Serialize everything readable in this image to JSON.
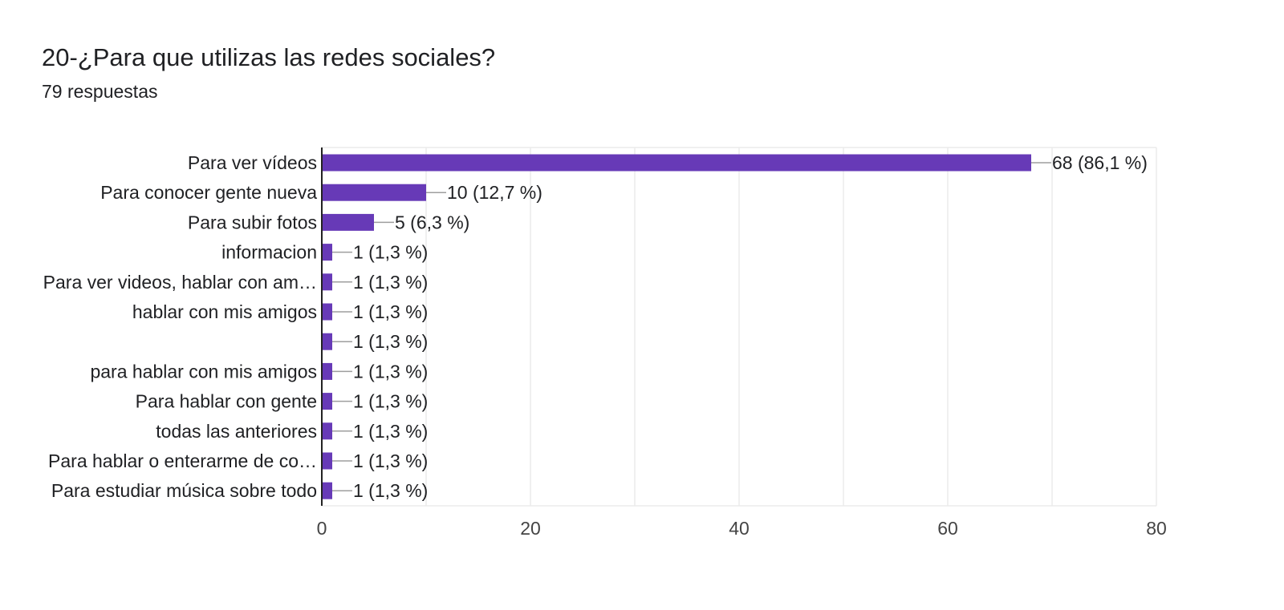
{
  "header": {
    "title": "20-¿Para que utilizas las redes sociales?",
    "subtitle": "79 respuestas"
  },
  "colors": {
    "bar": "#673ab7",
    "grid": "#ebebeb",
    "leader": "#9e9e9e",
    "axis": "#222222"
  },
  "chart_data": {
    "type": "bar",
    "orientation": "horizontal",
    "title": "20-¿Para que utilizas las redes sociales?",
    "subtitle": "79 respuestas",
    "categories": [
      "Para ver vídeos",
      "Para conocer gente nueva",
      "Para subir fotos",
      "informacion",
      "Para ver videos, hablar con am…",
      "hablar con mis amigos",
      "",
      "para hablar con mis amigos",
      "Para hablar con gente",
      "todas las anteriores",
      "Para hablar o enterarme de co…",
      "Para estudiar música sobre todo"
    ],
    "values": [
      68,
      10,
      5,
      1,
      1,
      1,
      1,
      1,
      1,
      1,
      1,
      1
    ],
    "data_labels": [
      "68 (86,1 %)",
      "10 (12,7 %)",
      "5 (6,3 %)",
      "1 (1,3 %)",
      "1 (1,3 %)",
      "1 (1,3 %)",
      "1 (1,3 %)",
      "1 (1,3 %)",
      "1 (1,3 %)",
      "1 (1,3 %)",
      "1 (1,3 %)",
      "1 (1,3 %)"
    ],
    "xlim": [
      0,
      80
    ],
    "xticks": [
      0,
      20,
      40,
      60,
      80
    ],
    "xtick_labels": [
      "0",
      "20",
      "40",
      "60",
      "80"
    ],
    "grid": true,
    "legend": "none"
  }
}
